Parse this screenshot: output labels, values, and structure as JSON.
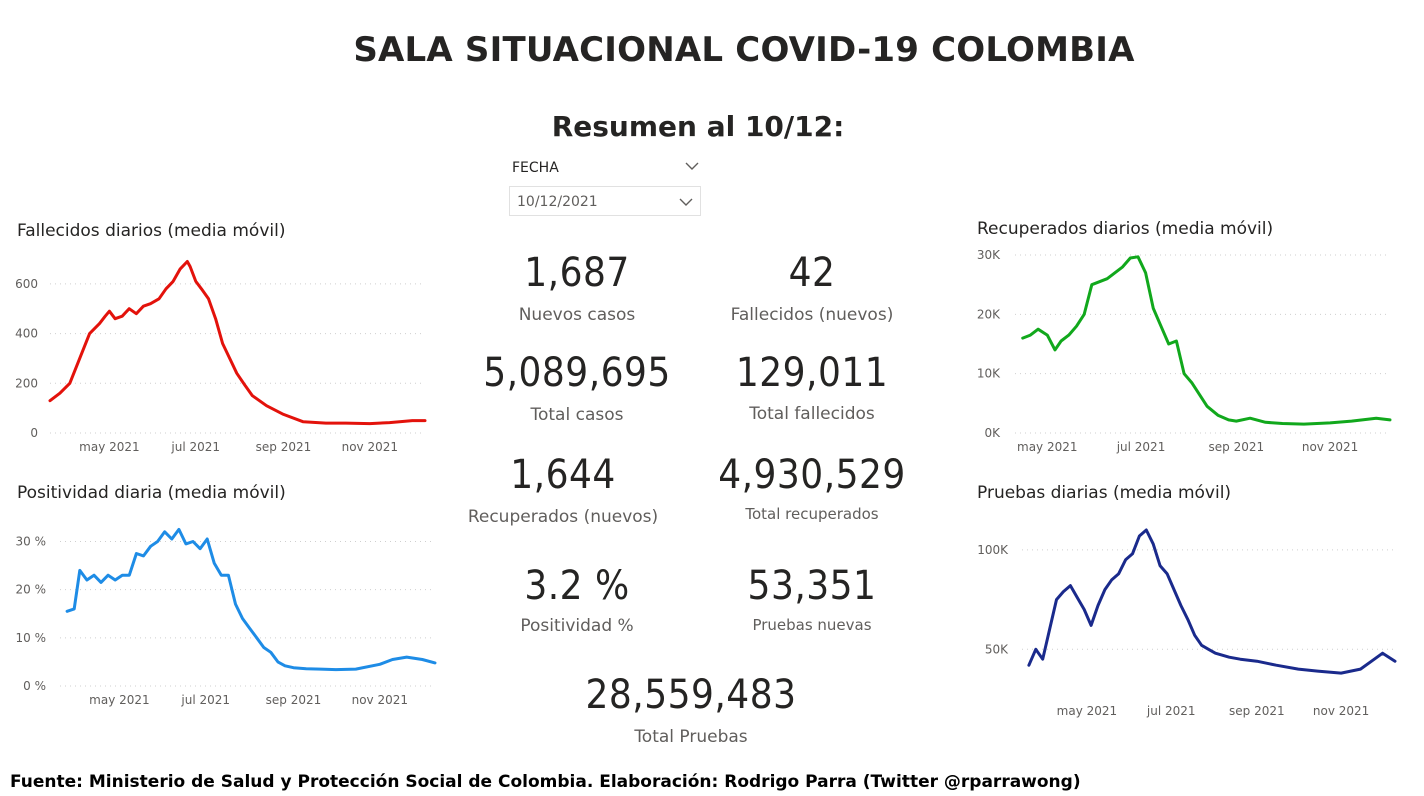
{
  "header": {
    "title": "SALA SITUACIONAL COVID-19 COLOMBIA",
    "subtitle": "Resumen al 10/12:"
  },
  "slicer": {
    "label": "FECHA",
    "value": "10/12/2021"
  },
  "kpis": [
    {
      "value": "1,687",
      "label": "Nuevos casos"
    },
    {
      "value": "42",
      "label": "Fallecidos (nuevos)"
    },
    {
      "value": "5,089,695",
      "label": "Total casos"
    },
    {
      "value": "129,011",
      "label": "Total fallecidos"
    },
    {
      "value": "1,644",
      "label": "Recuperados (nuevos)"
    },
    {
      "value": "4,930,529",
      "label": "Total recuperados"
    },
    {
      "value": "3.2 %",
      "label": "Positividad %"
    },
    {
      "value": "53,351",
      "label": "Pruebas nuevas"
    },
    {
      "value": "28,559,483",
      "label": "Total Pruebas"
    }
  ],
  "footer": "Fuente: Ministerio de Salud y Protección Social de Colombia. Elaboración: Rodrigo Parra (Twitter @rparrawong)",
  "colors": {
    "fallecidos": "#e3120b",
    "positividad": "#1e8ce6",
    "recuperados": "#11a81c",
    "pruebas": "#1a2a8c"
  },
  "chart_data": [
    {
      "type": "line",
      "title": "Fallecidos diarios (media móvil)",
      "xlabel": "",
      "ylabel": "",
      "x_range": [
        "2021-03-20",
        "2021-12-10"
      ],
      "ylim": [
        0,
        700
      ],
      "yticks": [
        0,
        200,
        400,
        600
      ],
      "ytick_labels": [
        "0",
        "200",
        "400",
        "600"
      ],
      "xticks": [
        "2021-05-01",
        "2021-07-01",
        "2021-09-01",
        "2021-11-01"
      ],
      "xtick_labels": [
        "may 2021",
        "jul 2021",
        "sep 2021",
        "nov 2021"
      ],
      "grid": true,
      "series": [
        {
          "x": [
            "2021-03-20",
            "2021-03-27",
            "2021-04-03",
            "2021-04-10",
            "2021-04-17",
            "2021-04-24",
            "2021-04-28",
            "2021-05-01",
            "2021-05-05",
            "2021-05-10",
            "2021-05-15",
            "2021-05-20",
            "2021-05-25",
            "2021-05-30",
            "2021-06-05",
            "2021-06-10",
            "2021-06-15",
            "2021-06-20",
            "2021-06-25",
            "2021-06-27",
            "2021-07-01",
            "2021-07-05",
            "2021-07-10",
            "2021-07-15",
            "2021-07-20",
            "2021-07-25",
            "2021-07-30",
            "2021-08-05",
            "2021-08-10",
            "2021-08-20",
            "2021-09-01",
            "2021-09-15",
            "2021-10-01",
            "2021-10-15",
            "2021-11-01",
            "2021-11-15",
            "2021-12-01",
            "2021-12-10"
          ],
          "values": [
            130,
            160,
            200,
            300,
            400,
            440,
            470,
            490,
            460,
            470,
            500,
            480,
            510,
            520,
            540,
            580,
            610,
            660,
            690,
            670,
            610,
            580,
            540,
            460,
            360,
            300,
            240,
            190,
            150,
            110,
            75,
            45,
            40,
            40,
            38,
            42,
            50,
            50
          ]
        }
      ]
    },
    {
      "type": "line",
      "title": "Positividad diaria (media móvil)",
      "xlabel": "",
      "ylabel": "",
      "x_range": [
        "2021-03-20",
        "2021-12-10"
      ],
      "ylim": [
        0,
        33
      ],
      "yticks": [
        0,
        10,
        20,
        30
      ],
      "ytick_labels": [
        "0 %",
        "10 %",
        "20 %",
        "30 %"
      ],
      "xticks": [
        "2021-05-01",
        "2021-07-01",
        "2021-09-01",
        "2021-11-01"
      ],
      "xtick_labels": [
        "may 2021",
        "jul 2021",
        "sep 2021",
        "nov 2021"
      ],
      "grid": true,
      "series": [
        {
          "x": [
            "2021-03-25",
            "2021-03-30",
            "2021-04-03",
            "2021-04-08",
            "2021-04-13",
            "2021-04-18",
            "2021-04-23",
            "2021-04-28",
            "2021-05-03",
            "2021-05-08",
            "2021-05-13",
            "2021-05-18",
            "2021-05-23",
            "2021-05-28",
            "2021-06-02",
            "2021-06-07",
            "2021-06-12",
            "2021-06-17",
            "2021-06-22",
            "2021-06-27",
            "2021-07-02",
            "2021-07-07",
            "2021-07-12",
            "2021-07-17",
            "2021-07-22",
            "2021-07-27",
            "2021-08-01",
            "2021-08-06",
            "2021-08-11",
            "2021-08-16",
            "2021-08-21",
            "2021-08-26",
            "2021-09-01",
            "2021-09-10",
            "2021-09-20",
            "2021-10-01",
            "2021-10-15",
            "2021-11-01",
            "2021-11-10",
            "2021-11-20",
            "2021-12-01",
            "2021-12-10"
          ],
          "values": [
            15.5,
            16,
            24,
            22,
            23,
            21.5,
            23,
            22,
            23,
            23,
            27.5,
            27,
            29,
            30,
            32,
            30.5,
            32.5,
            29.5,
            30,
            28.5,
            30.5,
            25.5,
            23,
            23,
            17,
            14,
            12,
            10,
            8,
            7,
            5,
            4.2,
            3.8,
            3.6,
            3.5,
            3.4,
            3.5,
            4.5,
            5.5,
            6,
            5.5,
            4.8
          ]
        }
      ]
    },
    {
      "type": "line",
      "title": "Recuperados diarios (media móvil)",
      "xlabel": "",
      "ylabel": "",
      "x_range": [
        "2021-04-10",
        "2021-12-10"
      ],
      "ylim": [
        0,
        30000
      ],
      "yticks": [
        0,
        10000,
        20000,
        30000
      ],
      "ytick_labels": [
        "0K",
        "10K",
        "20K",
        "30K"
      ],
      "xticks": [
        "2021-05-01",
        "2021-07-01",
        "2021-09-01",
        "2021-11-01"
      ],
      "xtick_labels": [
        "may 2021",
        "jul 2021",
        "sep 2021",
        "nov 2021"
      ],
      "grid": true,
      "series": [
        {
          "x": [
            "2021-04-15",
            "2021-04-20",
            "2021-04-25",
            "2021-05-01",
            "2021-05-06",
            "2021-05-10",
            "2021-05-15",
            "2021-05-20",
            "2021-05-25",
            "2021-05-30",
            "2021-06-04",
            "2021-06-09",
            "2021-06-14",
            "2021-06-19",
            "2021-06-24",
            "2021-06-29",
            "2021-07-04",
            "2021-07-09",
            "2021-07-14",
            "2021-07-19",
            "2021-07-24",
            "2021-07-29",
            "2021-08-03",
            "2021-08-08",
            "2021-08-13",
            "2021-08-20",
            "2021-08-27",
            "2021-09-01",
            "2021-09-10",
            "2021-09-20",
            "2021-10-01",
            "2021-10-15",
            "2021-11-01",
            "2021-11-15",
            "2021-12-01",
            "2021-12-10"
          ],
          "values": [
            16000,
            16500,
            17500,
            16500,
            14000,
            15500,
            16500,
            18000,
            20000,
            25000,
            25500,
            26000,
            27000,
            28000,
            29500,
            29700,
            27000,
            21000,
            18000,
            15000,
            15500,
            10000,
            8500,
            6500,
            4500,
            3000,
            2200,
            2000,
            2500,
            1800,
            1600,
            1500,
            1700,
            2000,
            2500,
            2200
          ]
        }
      ]
    },
    {
      "type": "line",
      "title": "Pruebas diarias (media móvil)",
      "xlabel": "",
      "ylabel": "",
      "x_range": [
        "2021-03-15",
        "2021-12-10"
      ],
      "ylim": [
        30000,
        110000
      ],
      "yticks": [
        50000,
        100000
      ],
      "ytick_labels": [
        "50K",
        "100K"
      ],
      "xticks": [
        "2021-05-01",
        "2021-07-01",
        "2021-09-01",
        "2021-11-01"
      ],
      "xtick_labels": [
        "may 2021",
        "jul 2021",
        "sep 2021",
        "nov 2021"
      ],
      "grid": true,
      "series": [
        {
          "x": [
            "2021-03-20",
            "2021-03-25",
            "2021-03-30",
            "2021-04-04",
            "2021-04-09",
            "2021-04-14",
            "2021-04-19",
            "2021-04-24",
            "2021-04-29",
            "2021-05-04",
            "2021-05-09",
            "2021-05-14",
            "2021-05-19",
            "2021-05-24",
            "2021-05-29",
            "2021-06-03",
            "2021-06-08",
            "2021-06-13",
            "2021-06-18",
            "2021-06-23",
            "2021-06-28",
            "2021-07-03",
            "2021-07-08",
            "2021-07-13",
            "2021-07-18",
            "2021-07-23",
            "2021-07-28",
            "2021-08-02",
            "2021-08-07",
            "2021-08-12",
            "2021-08-20",
            "2021-09-01",
            "2021-09-15",
            "2021-10-01",
            "2021-10-15",
            "2021-11-01",
            "2021-11-15",
            "2021-11-25",
            "2021-12-01",
            "2021-12-10"
          ],
          "values": [
            42000,
            50000,
            45000,
            60000,
            75000,
            79000,
            82000,
            76000,
            70000,
            62000,
            72000,
            80000,
            85000,
            88000,
            95000,
            98000,
            107000,
            110000,
            103000,
            92000,
            88000,
            80000,
            72000,
            65000,
            57000,
            52000,
            50000,
            48000,
            47000,
            46000,
            45000,
            44000,
            42000,
            40000,
            39000,
            38000,
            40000,
            45000,
            48000,
            44000
          ]
        }
      ]
    }
  ]
}
